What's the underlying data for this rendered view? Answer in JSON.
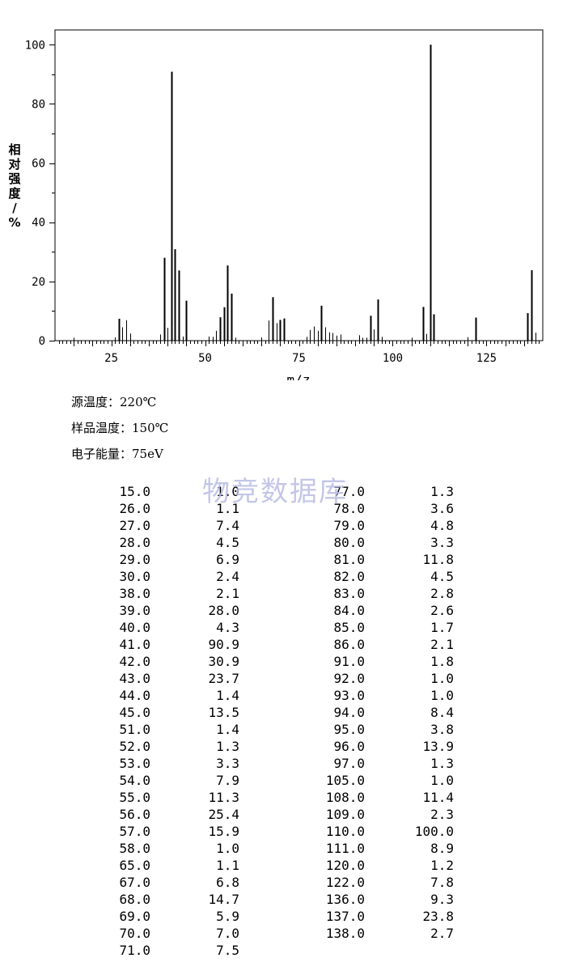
{
  "chart_data": {
    "type": "bar",
    "xlabel": "m/z",
    "ylabel": "相对强度/%",
    "xlim": [
      10,
      140
    ],
    "ylim": [
      0,
      105
    ],
    "xticks": [
      25,
      50,
      75,
      100,
      125
    ],
    "yticks": [
      0,
      20,
      40,
      60,
      80,
      100
    ],
    "peaks": [
      {
        "mz": "15.0",
        "int": "1.0"
      },
      {
        "mz": "26.0",
        "int": "1.1"
      },
      {
        "mz": "27.0",
        "int": "7.4"
      },
      {
        "mz": "28.0",
        "int": "4.5"
      },
      {
        "mz": "29.0",
        "int": "6.9"
      },
      {
        "mz": "30.0",
        "int": "2.4"
      },
      {
        "mz": "38.0",
        "int": "2.1"
      },
      {
        "mz": "39.0",
        "int": "28.0"
      },
      {
        "mz": "40.0",
        "int": "4.3"
      },
      {
        "mz": "41.0",
        "int": "90.9"
      },
      {
        "mz": "42.0",
        "int": "30.9"
      },
      {
        "mz": "43.0",
        "int": "23.7"
      },
      {
        "mz": "44.0",
        "int": "1.4"
      },
      {
        "mz": "45.0",
        "int": "13.5"
      },
      {
        "mz": "51.0",
        "int": "1.4"
      },
      {
        "mz": "52.0",
        "int": "1.3"
      },
      {
        "mz": "53.0",
        "int": "3.3"
      },
      {
        "mz": "54.0",
        "int": "7.9"
      },
      {
        "mz": "55.0",
        "int": "11.3"
      },
      {
        "mz": "56.0",
        "int": "25.4"
      },
      {
        "mz": "57.0",
        "int": "15.9"
      },
      {
        "mz": "58.0",
        "int": "1.0"
      },
      {
        "mz": "65.0",
        "int": "1.1"
      },
      {
        "mz": "67.0",
        "int": "6.8"
      },
      {
        "mz": "68.0",
        "int": "14.7"
      },
      {
        "mz": "69.0",
        "int": "5.9"
      },
      {
        "mz": "70.0",
        "int": "7.0"
      },
      {
        "mz": "71.0",
        "int": "7.5"
      },
      {
        "mz": "77.0",
        "int": "1.3"
      },
      {
        "mz": "78.0",
        "int": "3.6"
      },
      {
        "mz": "79.0",
        "int": "4.8"
      },
      {
        "mz": "80.0",
        "int": "3.3"
      },
      {
        "mz": "81.0",
        "int": "11.8"
      },
      {
        "mz": "82.0",
        "int": "4.5"
      },
      {
        "mz": "83.0",
        "int": "2.8"
      },
      {
        "mz": "84.0",
        "int": "2.6"
      },
      {
        "mz": "85.0",
        "int": "1.7"
      },
      {
        "mz": "86.0",
        "int": "2.1"
      },
      {
        "mz": "91.0",
        "int": "1.8"
      },
      {
        "mz": "92.0",
        "int": "1.0"
      },
      {
        "mz": "93.0",
        "int": "1.0"
      },
      {
        "mz": "94.0",
        "int": "8.4"
      },
      {
        "mz": "95.0",
        "int": "3.8"
      },
      {
        "mz": "96.0",
        "int": "13.9"
      },
      {
        "mz": "97.0",
        "int": "1.3"
      },
      {
        "mz": "105.0",
        "int": "1.0"
      },
      {
        "mz": "108.0",
        "int": "11.4"
      },
      {
        "mz": "109.0",
        "int": "2.3"
      },
      {
        "mz": "110.0",
        "int": "100.0"
      },
      {
        "mz": "111.0",
        "int": "8.9"
      },
      {
        "mz": "120.0",
        "int": "1.2"
      },
      {
        "mz": "122.0",
        "int": "7.8"
      },
      {
        "mz": "136.0",
        "int": "9.3"
      },
      {
        "mz": "137.0",
        "int": "23.8"
      },
      {
        "mz": "138.0",
        "int": "2.7"
      }
    ]
  },
  "conditions": {
    "source_temp": "源温度：220℃",
    "sample_temp": "样品温度：150℃",
    "electron_energy": "电子能量：75eV"
  },
  "watermark": "物竞数据库"
}
